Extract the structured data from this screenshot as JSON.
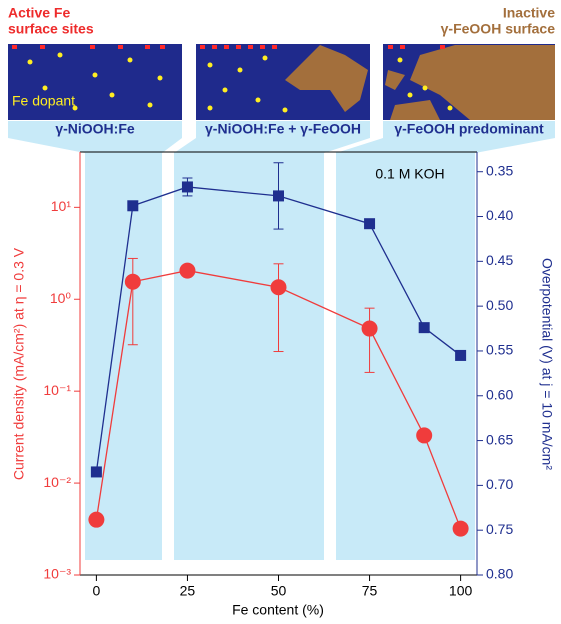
{
  "chart_data": {
    "type": "line",
    "x_label": "Fe content (%)",
    "y_label": "Current density (mA/cm²) at η = 0.3 V",
    "y2_label": "Overpotential (V) at j = 10 mA/cm²",
    "annotation": "0.1 M KOH",
    "x": [
      0,
      10,
      25,
      50,
      75,
      90,
      100
    ],
    "xlim": [
      -4.5,
      104.5
    ],
    "xticks": [
      0,
      25,
      50,
      75,
      100
    ],
    "ylim": [
      0.001,
      40
    ],
    "log_y": true,
    "yticks": [
      {
        "value": 0.001,
        "label": "10⁻³"
      },
      {
        "value": 0.01,
        "label": "10⁻²"
      },
      {
        "value": 0.1,
        "label": "10⁻¹"
      },
      {
        "value": 1,
        "label": "10⁰"
      },
      {
        "value": 10,
        "label": "10¹"
      }
    ],
    "y2lim": [
      0.8,
      0.328
    ],
    "y2ticks": [
      0.35,
      {
        "value": 0.4,
        "label": "0.40"
      },
      0.45,
      {
        "value": 0.5,
        "label": "0.50"
      },
      0.55,
      {
        "value": 0.6,
        "label": "0.60"
      },
      0.65,
      {
        "value": 0.7,
        "label": "0.70"
      },
      0.75,
      {
        "value": 0.8,
        "label": "0.80"
      }
    ],
    "series": [
      {
        "color": "#f03c3c",
        "axis": "y",
        "marker": "circle",
        "values": [
          0.004,
          1.55,
          2.05,
          1.35,
          0.48,
          0.033,
          0.0032
        ],
        "errors": [
          null,
          1.23,
          null,
          1.08,
          0.32,
          null,
          null
        ]
      },
      {
        "color": "#1f2f8f",
        "axis": "y2",
        "marker": "square",
        "values": [
          0.685,
          0.388,
          0.367,
          0.377,
          0.408,
          0.524,
          0.555
        ],
        "errors": [
          null,
          null,
          0.01,
          0.037,
          null,
          null,
          null
        ]
      }
    ]
  },
  "schematic": {
    "left_caption": [
      "Active Fe",
      "surface sites"
    ],
    "right_caption": [
      "Inactive",
      "γ-FeOOH surface"
    ],
    "dopant_label": "Fe dopant",
    "panels": [
      "γ-NiOOH:Fe",
      "γ-NiOOH:Fe + γ-FeOOH",
      "γ-FeOOH predominant"
    ]
  }
}
